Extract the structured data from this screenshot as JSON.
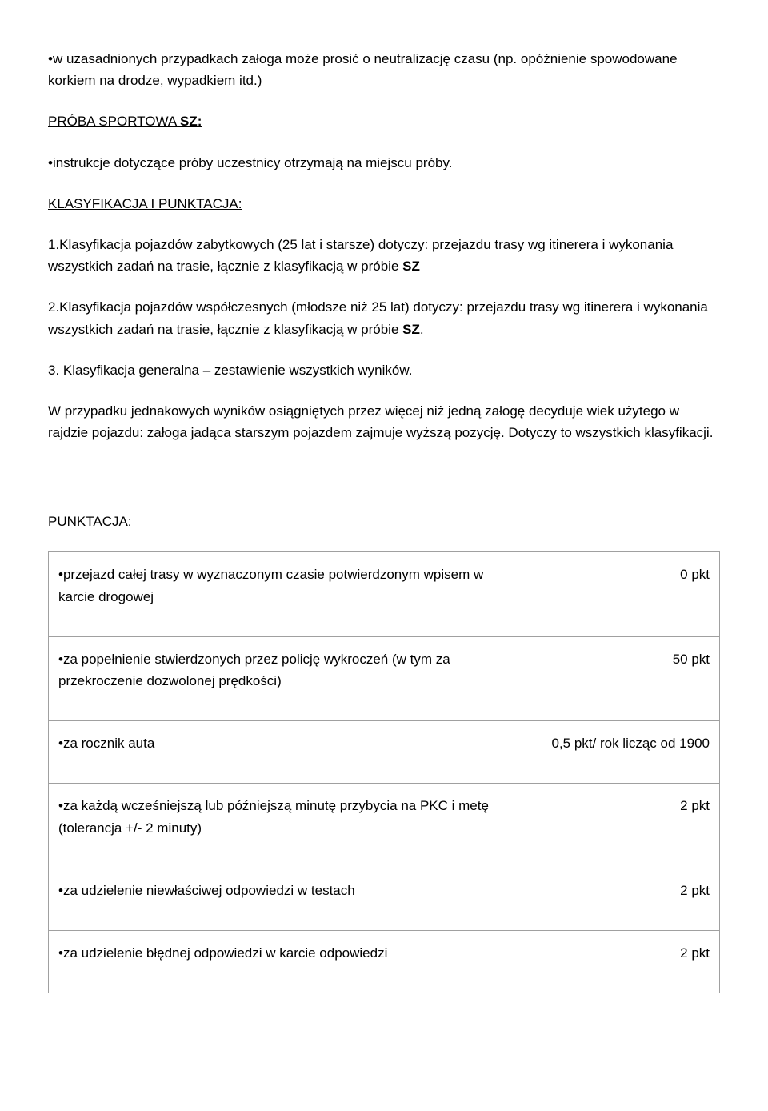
{
  "intro": {
    "line": "•w uzasadnionych przypadkach załoga może prosić o neutralizację czasu (np. opóźnienie spowodowane korkiem na drodze, wypadkiem itd.)"
  },
  "proba": {
    "heading_prefix": "PRÓBA SPORTOWA ",
    "heading_bold": "SZ:",
    "line": "•instrukcje dotyczące próby uczestnicy otrzymają na miejscu próby."
  },
  "klas": {
    "heading": "KLASYFIKACJA I PUNKTACJA:",
    "item1_part1": "1.Klasyfikacja pojazdów zabytkowych (25 lat i starsze) dotyczy: przejazdu trasy wg itinerera i wykonania wszystkich zadań na trasie, łącznie z klasyfikacją w próbie ",
    "item1_bold": "SZ",
    "item2_part1": "2.Klasyfikacja pojazdów współczesnych (młodsze niż 25 lat) dotyczy: przejazdu trasy wg itinerera i wykonania wszystkich zadań na trasie, łącznie z klasyfikacją w próbie ",
    "item2_bold": "SZ",
    "item2_suffix": ".",
    "item3": "3. Klasyfikacja generalna – zestawienie wszystkich wyników.",
    "note": "W przypadku jednakowych wyników osiągniętych przez więcej niż jedną załogę decyduje wiek użytego w rajdzie pojazdu: załoga jadąca starszym pojazdem zajmuje wyższą pozycję. Dotyczy to wszystkich klasyfikacji."
  },
  "punktacja": {
    "heading": "PUNKTACJA:",
    "rows": [
      {
        "desc": "•przejazd całej trasy w wyznaczonym czasie potwierdzonym wpisem w karcie drogowej",
        "pts": "0 pkt"
      },
      {
        "desc": "•za popełnienie stwierdzonych przez policję wykroczeń (w tym za przekroczenie dozwolonej prędkości)",
        "pts": "50 pkt"
      },
      {
        "desc": "•za rocznik auta",
        "pts": "0,5 pkt/ rok licząc od 1900"
      },
      {
        "desc": "•za każdą wcześniejszą lub późniejszą minutę przybycia na PKC i metę (tolerancja +/- 2 minuty)",
        "pts": "2 pkt"
      },
      {
        "desc": "•za udzielenie niewłaściwej odpowiedzi w testach",
        "pts": "2 pkt"
      },
      {
        "desc": "•za udzielenie błędnej odpowiedzi w karcie odpowiedzi",
        "pts": "2 pkt"
      }
    ]
  }
}
